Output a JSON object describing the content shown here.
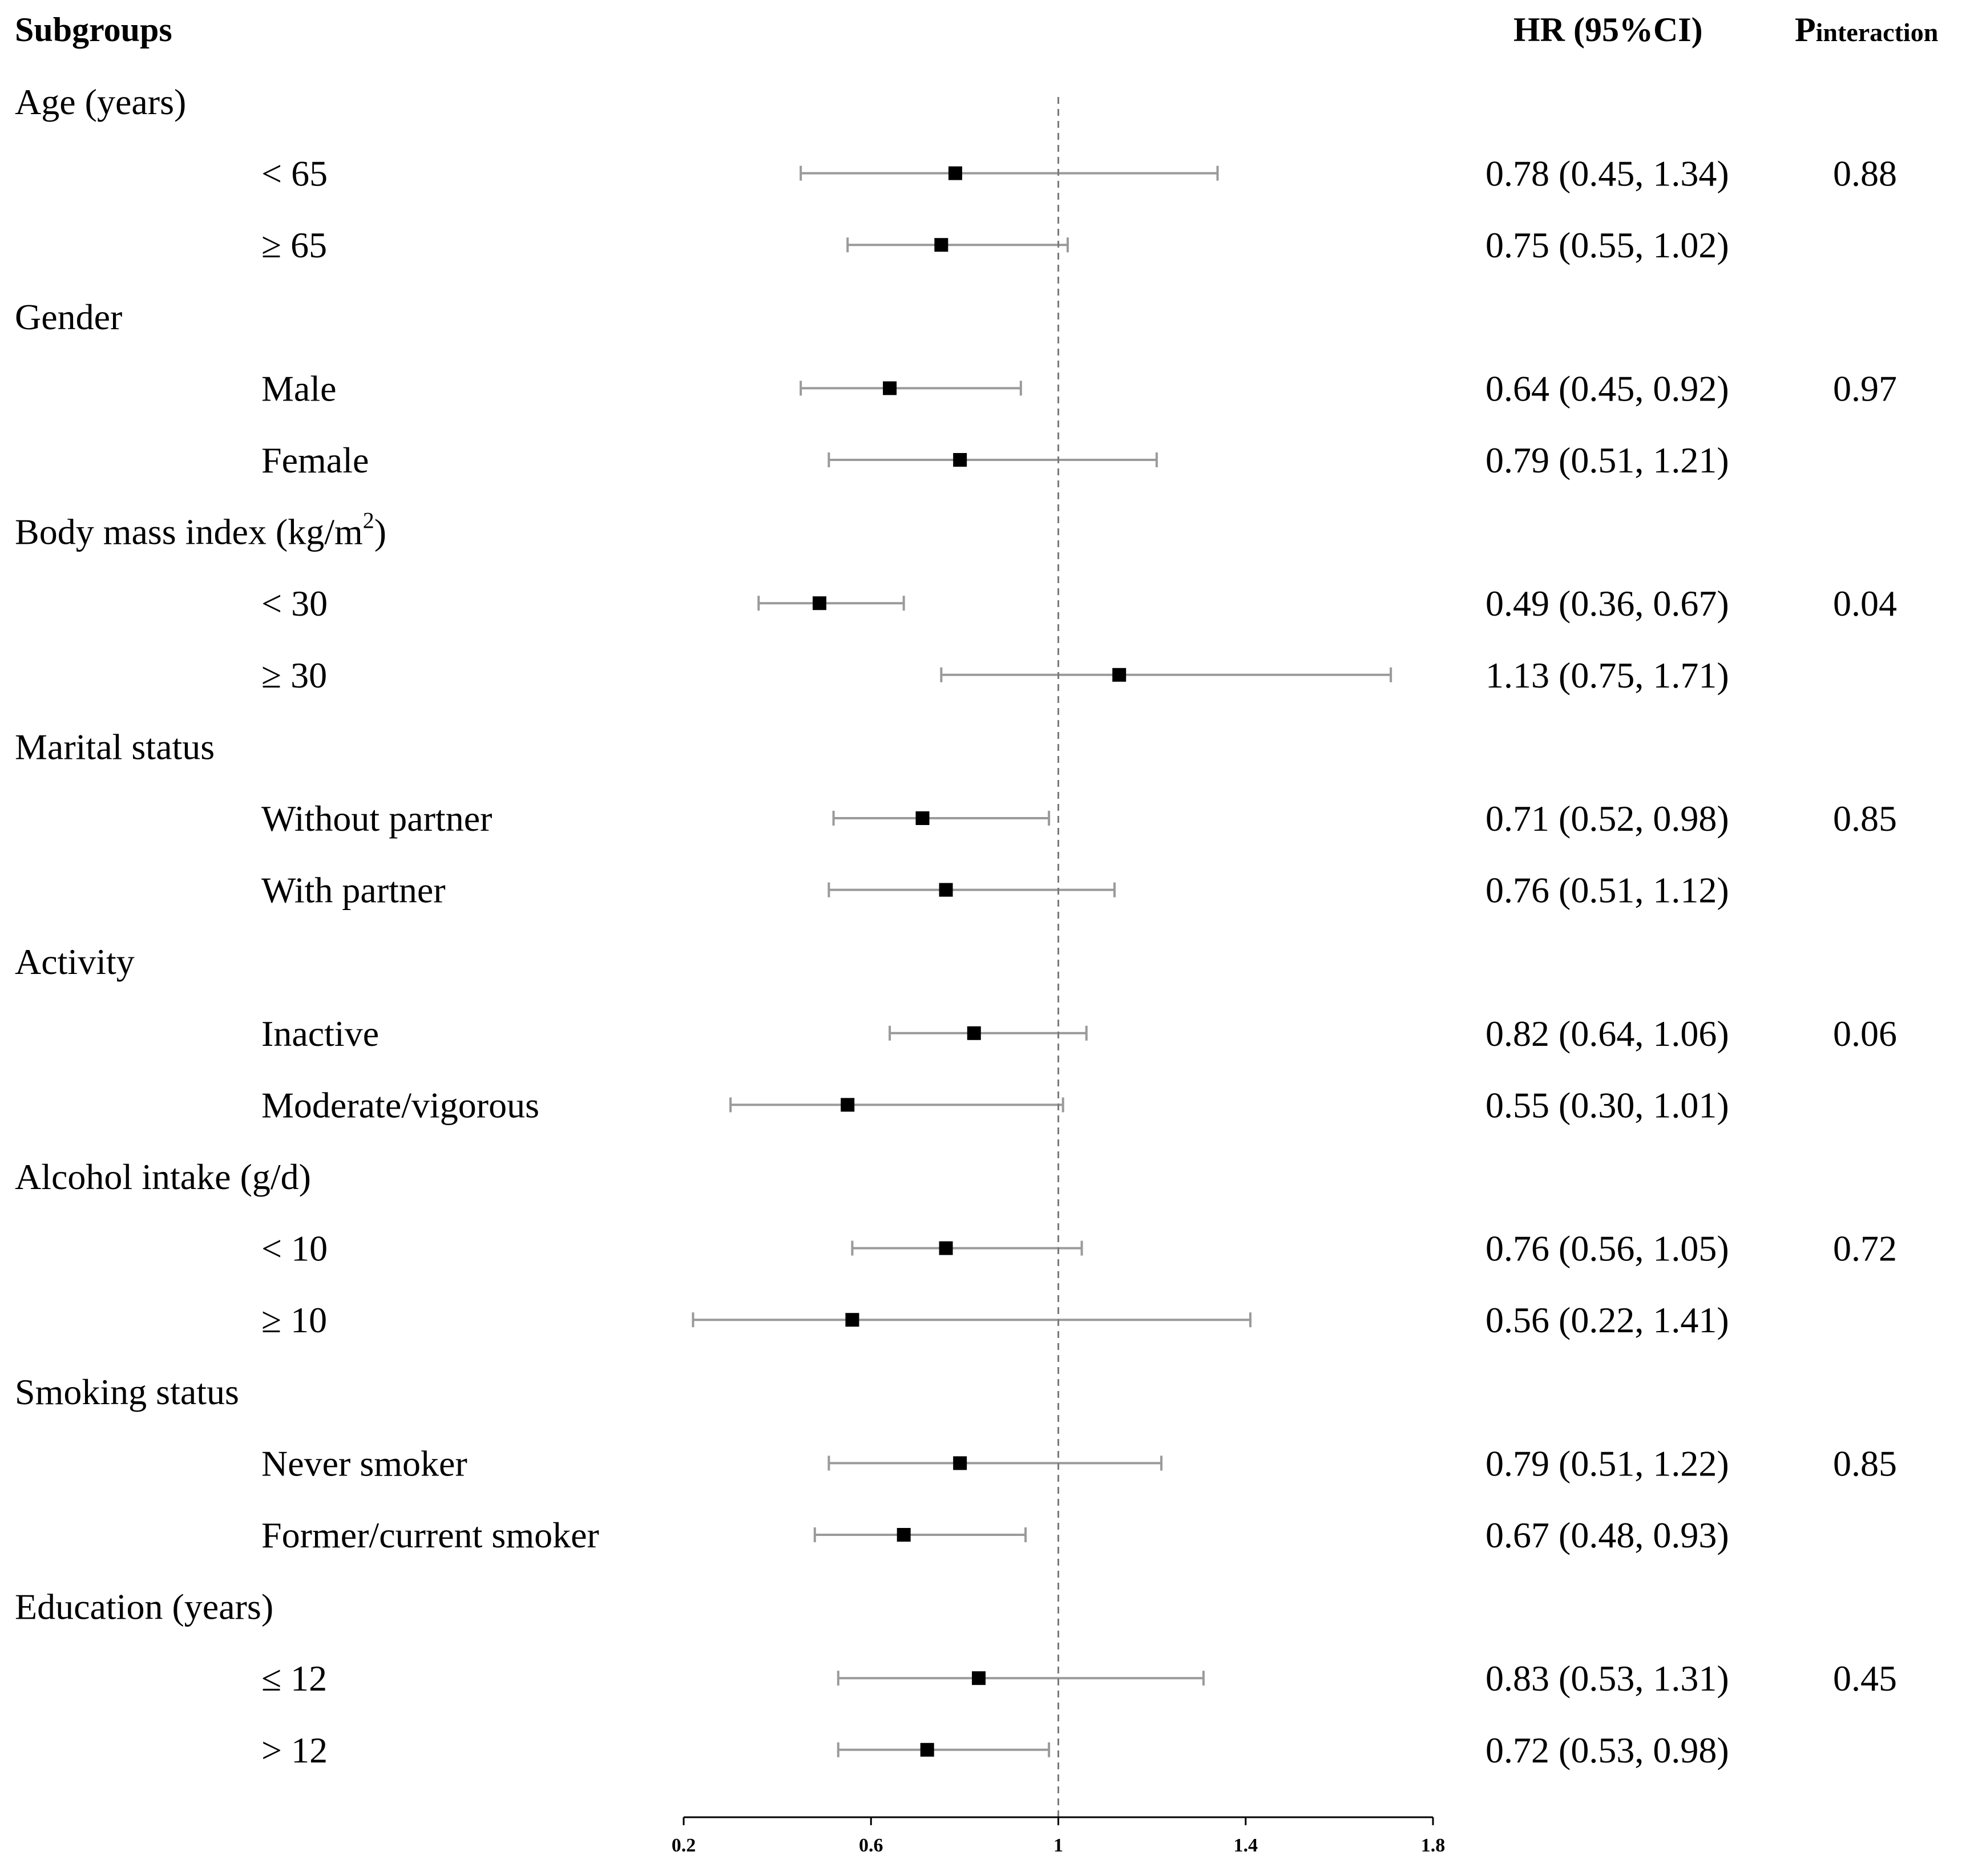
{
  "header": {
    "subgroups": "Subgroups",
    "hr": "HR (95%CI)",
    "p_main": "P",
    "p_sub": "interaction"
  },
  "chart_data": {
    "type": "forest",
    "xlabel": "",
    "ylabel": "",
    "xlim": [
      0.2,
      1.8
    ],
    "xticks": [
      0.2,
      0.6,
      1,
      1.4,
      1.8
    ],
    "xtick_labels": [
      "0.2",
      "0.6",
      "1",
      "1.4",
      "1.8"
    ],
    "reference_line": 1,
    "groups": [
      {
        "label": "Age (years)",
        "p_interaction": "0.88",
        "rows": [
          {
            "label": "< 65",
            "hr": 0.78,
            "lo": 0.45,
            "hi": 1.34,
            "text": "0.78 (0.45, 1.34)"
          },
          {
            "label": "≥ 65",
            "hr": 0.75,
            "lo": 0.55,
            "hi": 1.02,
            "text": "0.75 (0.55, 1.02)"
          }
        ]
      },
      {
        "label": "Gender",
        "p_interaction": "0.97",
        "rows": [
          {
            "label": "Male",
            "hr": 0.64,
            "lo": 0.45,
            "hi": 0.92,
            "text": "0.64 (0.45, 0.92)"
          },
          {
            "label": "Female",
            "hr": 0.79,
            "lo": 0.51,
            "hi": 1.21,
            "text": "0.79 (0.51, 1.21)"
          }
        ]
      },
      {
        "label": "Body mass index (kg/m",
        "label_sup": "2",
        "label_end": ")",
        "p_interaction": "0.04",
        "rows": [
          {
            "label": "< 30",
            "hr": 0.49,
            "lo": 0.36,
            "hi": 0.67,
            "text": "0.49 (0.36, 0.67)"
          },
          {
            "label": "≥ 30",
            "hr": 1.13,
            "lo": 0.75,
            "hi": 1.71,
            "text": "1.13 (0.75, 1.71)"
          }
        ]
      },
      {
        "label": "Marital status",
        "p_interaction": "0.85",
        "rows": [
          {
            "label": "Without partner",
            "hr": 0.71,
            "lo": 0.52,
            "hi": 0.98,
            "text": "0.71 (0.52, 0.98)"
          },
          {
            "label": "With partner",
            "hr": 0.76,
            "lo": 0.51,
            "hi": 1.12,
            "text": "0.76 (0.51, 1.12)"
          }
        ]
      },
      {
        "label": "Activity",
        "p_interaction": "0.06",
        "rows": [
          {
            "label": "Inactive",
            "hr": 0.82,
            "lo": 0.64,
            "hi": 1.06,
            "text": "0.82 (0.64, 1.06)"
          },
          {
            "label": "Moderate/vigorous",
            "hr": 0.55,
            "lo": 0.3,
            "hi": 1.01,
            "text": "0.55 (0.30, 1.01)"
          }
        ]
      },
      {
        "label": "Alcohol intake (g/d)",
        "p_interaction": "0.72",
        "rows": [
          {
            "label": "< 10",
            "hr": 0.76,
            "lo": 0.56,
            "hi": 1.05,
            "text": "0.76 (0.56, 1.05)"
          },
          {
            "label": "≥ 10",
            "hr": 0.56,
            "lo": 0.22,
            "hi": 1.41,
            "text": "0.56 (0.22, 1.41)"
          }
        ]
      },
      {
        "label": "Smoking status",
        "p_interaction": "0.85",
        "rows": [
          {
            "label": "Never smoker",
            "hr": 0.79,
            "lo": 0.51,
            "hi": 1.22,
            "text": "0.79 (0.51, 1.22)"
          },
          {
            "label": "Former/current smoker",
            "hr": 0.67,
            "lo": 0.48,
            "hi": 0.93,
            "text": "0.67 (0.48, 0.93)"
          }
        ]
      },
      {
        "label": "Education (years)",
        "p_interaction": "0.45",
        "rows": [
          {
            "label": "≤ 12",
            "hr": 0.83,
            "lo": 0.53,
            "hi": 1.31,
            "text": "0.83 (0.53, 1.31)"
          },
          {
            "label": "> 12",
            "hr": 0.72,
            "lo": 0.53,
            "hi": 0.98,
            "text": "0.72 (0.53, 0.98)"
          }
        ]
      }
    ]
  },
  "colors": {
    "ci_line": "#9a9a9a",
    "marker": "#000000",
    "ref_line": "#7a7a7a",
    "axis": "#000000",
    "text": "#000000"
  }
}
